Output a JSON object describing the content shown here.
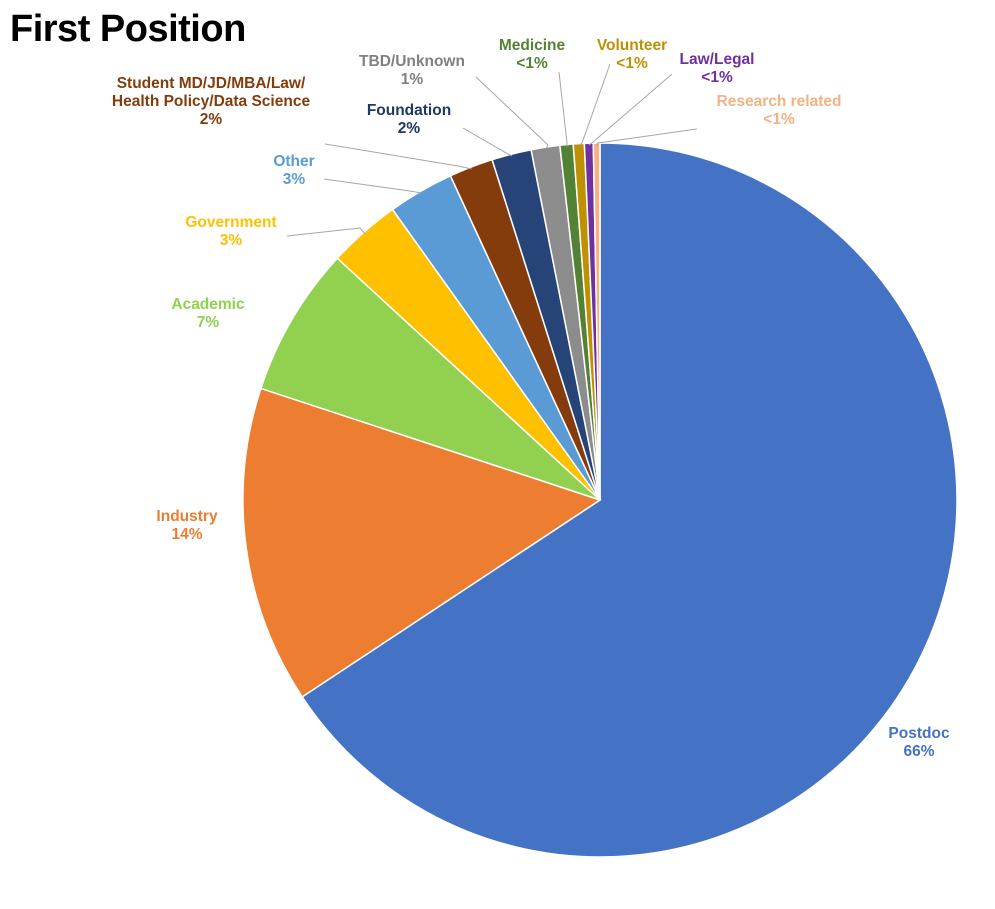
{
  "chart_data": {
    "type": "pie",
    "title": "First Position",
    "start_angle_deg": 0,
    "direction": "clockwise",
    "slices": [
      {
        "name": "Postdoc",
        "label": "66%",
        "value": 65.9,
        "color": "#4472C4",
        "text_color": "#4472C4"
      },
      {
        "name": "Industry",
        "label": "14%",
        "value": 14.4,
        "color": "#ED7D31",
        "text_color": "#ED7D31"
      },
      {
        "name": "Academic",
        "label": "7%",
        "value": 6.8,
        "color": "#92D050",
        "text_color": "#92D050"
      },
      {
        "name": "Government",
        "label": "3%",
        "value": 3.3,
        "color": "#FFC000",
        "text_color": "#FFC000"
      },
      {
        "name": "Other",
        "label": "3%",
        "value": 3.0,
        "color": "#5B9BD5",
        "text_color": "#5B9BD5"
      },
      {
        "name": "Student MD/JD/MBA/Law/\nHealth Policy/Data Science",
        "label": "2%",
        "value": 2.0,
        "color": "#843C0C",
        "text_color": "#843C0C"
      },
      {
        "name": "Foundation",
        "label": "2%",
        "value": 1.8,
        "color": "#264478",
        "text_color": "#1F3864"
      },
      {
        "name": "TBD/Unknown",
        "label": "1%",
        "value": 1.3,
        "color": "#8C8C8C",
        "text_color": "#808080"
      },
      {
        "name": "Medicine",
        "label": "<1%",
        "value": 0.6,
        "color": "#548235",
        "text_color": "#548235"
      },
      {
        "name": "Volunteer",
        "label": "<1%",
        "value": 0.5,
        "color": "#BF9000",
        "text_color": "#BF9000"
      },
      {
        "name": "Law/Legal",
        "label": "<1%",
        "value": 0.4,
        "color": "#7030A0",
        "text_color": "#7030A0"
      },
      {
        "name": "Research related",
        "label": "<1%",
        "value": 0.3,
        "color": "#F4B183",
        "text_color": "#F4B183"
      }
    ]
  }
}
